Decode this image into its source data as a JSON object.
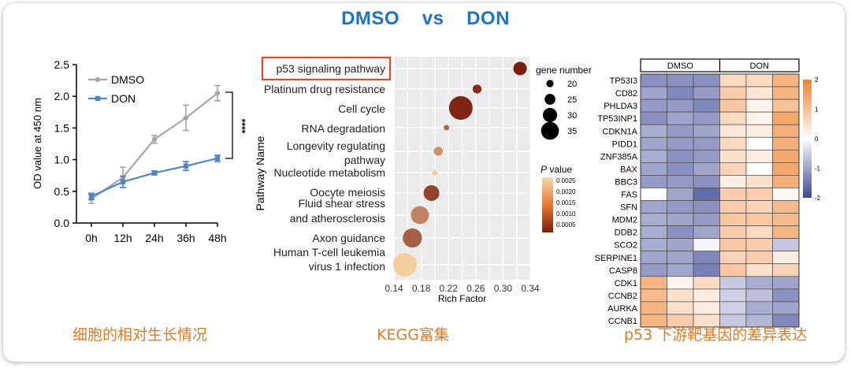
{
  "title": "DMSO    vs    DON",
  "captions": [
    "细胞的相对生长情况",
    "KEGG富集",
    "p53 下游靶基因的差异表达"
  ],
  "colors": {
    "title": "#1f73c4",
    "caption": "#e07a25",
    "dmso": "#a6a6a6",
    "don": "#4f86c6",
    "highlight_box": "#e0482a"
  },
  "chart_data": [
    {
      "type": "line",
      "title": "",
      "xlabel": "",
      "ylabel": "OD value at 450 nm",
      "categories": [
        "0h",
        "12h",
        "24h",
        "36h",
        "48h"
      ],
      "ylim": [
        0.0,
        2.5
      ],
      "yticks": [
        "0.0",
        "0.5",
        "1.0",
        "1.5",
        "2.0",
        "2.5"
      ],
      "significance": "****",
      "series": [
        {
          "name": "DMSO",
          "values": [
            0.38,
            0.72,
            1.32,
            1.66,
            2.05
          ],
          "errors": [
            0.07,
            0.16,
            0.06,
            0.2,
            0.12
          ]
        },
        {
          "name": "DON",
          "values": [
            0.42,
            0.65,
            0.79,
            0.9,
            1.02
          ],
          "errors": [
            0.05,
            0.09,
            0.03,
            0.07,
            0.05
          ]
        }
      ],
      "legend": "top-left"
    },
    {
      "type": "scatter",
      "title": "",
      "xlabel": "Rich Factor",
      "ylabel": "Pathway Name",
      "xlim": [
        0.14,
        0.34
      ],
      "xticks": [
        "0.14",
        "0.18",
        "0.22",
        "0.26",
        "0.30",
        "0.34"
      ],
      "highlighted": "p53 signaling pathway",
      "points": [
        {
          "label": "p53 signaling pathway",
          "x": 0.325,
          "gene_number": 26,
          "p": 0.0002
        },
        {
          "label": "Platinum drug resistance",
          "x": 0.262,
          "gene_number": 22,
          "p": 0.0004
        },
        {
          "label": "Cell cycle",
          "x": 0.238,
          "gene_number": 35,
          "p": 0.0003
        },
        {
          "label": "RNA degradation",
          "x": 0.217,
          "gene_number": 19,
          "p": 0.0012
        },
        {
          "label": "Longevity regulating pathway",
          "x": 0.205,
          "gene_number": 22,
          "p": 0.0018
        },
        {
          "label": "Nucleotide metabolism",
          "x": 0.2,
          "gene_number": 19,
          "p": 0.0026
        },
        {
          "label": "Oocyte meiosis",
          "x": 0.195,
          "gene_number": 28,
          "p": 0.0007
        },
        {
          "label": "Fluid shear stress and atherosclerosis",
          "x": 0.178,
          "gene_number": 30,
          "p": 0.0016
        },
        {
          "label": "Axon guidance",
          "x": 0.167,
          "gene_number": 31,
          "p": 0.0011
        },
        {
          "label": "Human T-cell leukemia virus 1 infection",
          "x": 0.156,
          "gene_number": 35,
          "p": 0.0026
        }
      ],
      "size_legend": {
        "title": "gene number",
        "values": [
          "20",
          "25",
          "30",
          "35"
        ]
      },
      "color_legend": {
        "title_italic": "P",
        "title_rest": "  value",
        "ticks": [
          "0.0025",
          "0.0020",
          "0.0015",
          "0.0010",
          "0.0005"
        ]
      }
    },
    {
      "type": "heatmap",
      "title": "",
      "columns_groups": [
        "DMSO",
        "DON"
      ],
      "rows": [
        "TP53I3",
        "CD82",
        "PHLDA3",
        "TP53INP1",
        "CDKN1A",
        "PIDD1",
        "ZNF385A",
        "BAX",
        "BBC3",
        "FAS",
        "SFN",
        "MDM2",
        "DDB2",
        "SCO2",
        "SERPINE1",
        "CASP8",
        "CDK1",
        "CCNB2",
        "AURKA",
        "CCNB1"
      ],
      "values": [
        [
          -1.2,
          -1.2,
          -1.2,
          0.6,
          0.6,
          1.2
        ],
        [
          -1.0,
          -1.3,
          -1.1,
          0.8,
          0.4,
          1.2
        ],
        [
          -1.1,
          -1.1,
          -1.3,
          0.9,
          0.2,
          1.0
        ],
        [
          -1.2,
          -1.0,
          -1.1,
          0.6,
          0.2,
          1.4
        ],
        [
          -0.9,
          -1.1,
          -1.0,
          0.4,
          0.3,
          1.3
        ],
        [
          -1.0,
          -1.1,
          -1.1,
          0.6,
          0.0,
          1.3
        ],
        [
          -0.9,
          -1.2,
          -1.1,
          0.5,
          0.3,
          1.4
        ],
        [
          -1.0,
          -1.2,
          -1.0,
          0.7,
          0.0,
          1.4
        ],
        [
          -1.1,
          -1.1,
          -1.2,
          0.3,
          0.5,
          1.3
        ],
        [
          0.0,
          -1.0,
          -1.6,
          0.8,
          0.8,
          0.1
        ],
        [
          -1.0,
          -1.1,
          -1.2,
          0.8,
          0.7,
          1.1
        ],
        [
          -0.9,
          -1.0,
          -1.1,
          0.9,
          0.9,
          1.1
        ],
        [
          -0.9,
          -1.2,
          -1.0,
          0.8,
          0.6,
          1.2
        ],
        [
          -0.9,
          -1.0,
          -0.1,
          0.9,
          0.8,
          -0.6
        ],
        [
          -1.0,
          -1.0,
          -1.3,
          0.7,
          0.8,
          0.3
        ],
        [
          -1.1,
          -1.0,
          -1.4,
          0.9,
          0.5,
          0.7
        ],
        [
          1.2,
          0.2,
          0.6,
          -0.6,
          -0.9,
          -1.0
        ],
        [
          1.1,
          0.5,
          0.3,
          -0.5,
          -0.7,
          -1.2
        ],
        [
          1.2,
          0.5,
          0.3,
          -0.5,
          -0.9,
          -1.0
        ],
        [
          1.2,
          0.8,
          0.5,
          -0.6,
          -0.8,
          -1.3
        ]
      ],
      "scale_ticks": [
        "2",
        "1",
        "0",
        "-1",
        "-2"
      ],
      "vmin": -2,
      "vmax": 2
    }
  ]
}
